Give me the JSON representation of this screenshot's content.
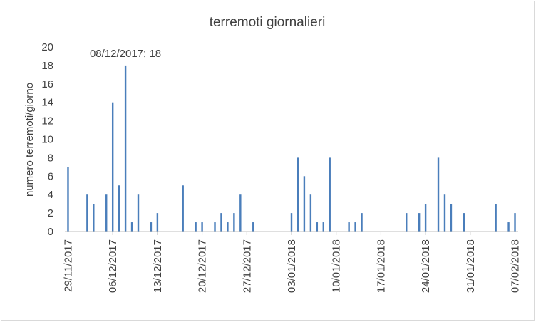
{
  "chart_data": {
    "type": "bar",
    "title": "terremoti giornalieri",
    "ylabel": "numero terremoti/giorno",
    "xlabel": "",
    "ylim": [
      0,
      20
    ],
    "y_ticks": [
      0,
      2,
      4,
      6,
      8,
      10,
      12,
      14,
      16,
      18,
      20
    ],
    "x_start": "29/11/2017",
    "x_end": "07/02/2018",
    "x_tick_labels": [
      "29/11/2017",
      "06/12/2017",
      "13/12/2017",
      "20/12/2017",
      "27/12/2017",
      "03/01/2018",
      "10/01/2018",
      "17/01/2018",
      "24/01/2018",
      "31/01/2018",
      "07/02/2018"
    ],
    "annotation": "08/12/2017; 18",
    "grid": false,
    "legend": "none",
    "bar_color": "#4a7ebb",
    "points": [
      {
        "date": "29/11/2017",
        "value": 7
      },
      {
        "date": "02/12/2017",
        "value": 4
      },
      {
        "date": "03/12/2017",
        "value": 3
      },
      {
        "date": "05/12/2017",
        "value": 4
      },
      {
        "date": "06/12/2017",
        "value": 14
      },
      {
        "date": "07/12/2017",
        "value": 5
      },
      {
        "date": "08/12/2017",
        "value": 18
      },
      {
        "date": "09/12/2017",
        "value": 1
      },
      {
        "date": "10/12/2017",
        "value": 4
      },
      {
        "date": "12/12/2017",
        "value": 1
      },
      {
        "date": "13/12/2017",
        "value": 2
      },
      {
        "date": "17/12/2017",
        "value": 5
      },
      {
        "date": "19/12/2017",
        "value": 1
      },
      {
        "date": "20/12/2017",
        "value": 1
      },
      {
        "date": "22/12/2017",
        "value": 1
      },
      {
        "date": "23/12/2017",
        "value": 2
      },
      {
        "date": "24/12/2017",
        "value": 1
      },
      {
        "date": "25/12/2017",
        "value": 2
      },
      {
        "date": "26/12/2017",
        "value": 4
      },
      {
        "date": "28/12/2017",
        "value": 1
      },
      {
        "date": "03/01/2018",
        "value": 2
      },
      {
        "date": "04/01/2018",
        "value": 8
      },
      {
        "date": "05/01/2018",
        "value": 6
      },
      {
        "date": "06/01/2018",
        "value": 4
      },
      {
        "date": "07/01/2018",
        "value": 1
      },
      {
        "date": "08/01/2018",
        "value": 1
      },
      {
        "date": "09/01/2018",
        "value": 8
      },
      {
        "date": "12/01/2018",
        "value": 1
      },
      {
        "date": "13/01/2018",
        "value": 1
      },
      {
        "date": "14/01/2018",
        "value": 2
      },
      {
        "date": "21/01/2018",
        "value": 2
      },
      {
        "date": "23/01/2018",
        "value": 2
      },
      {
        "date": "24/01/2018",
        "value": 3
      },
      {
        "date": "26/01/2018",
        "value": 8
      },
      {
        "date": "27/01/2018",
        "value": 4
      },
      {
        "date": "28/01/2018",
        "value": 3
      },
      {
        "date": "30/01/2018",
        "value": 2
      },
      {
        "date": "04/02/2018",
        "value": 3
      },
      {
        "date": "06/02/2018",
        "value": 1
      },
      {
        "date": "07/02/2018",
        "value": 2
      }
    ]
  }
}
